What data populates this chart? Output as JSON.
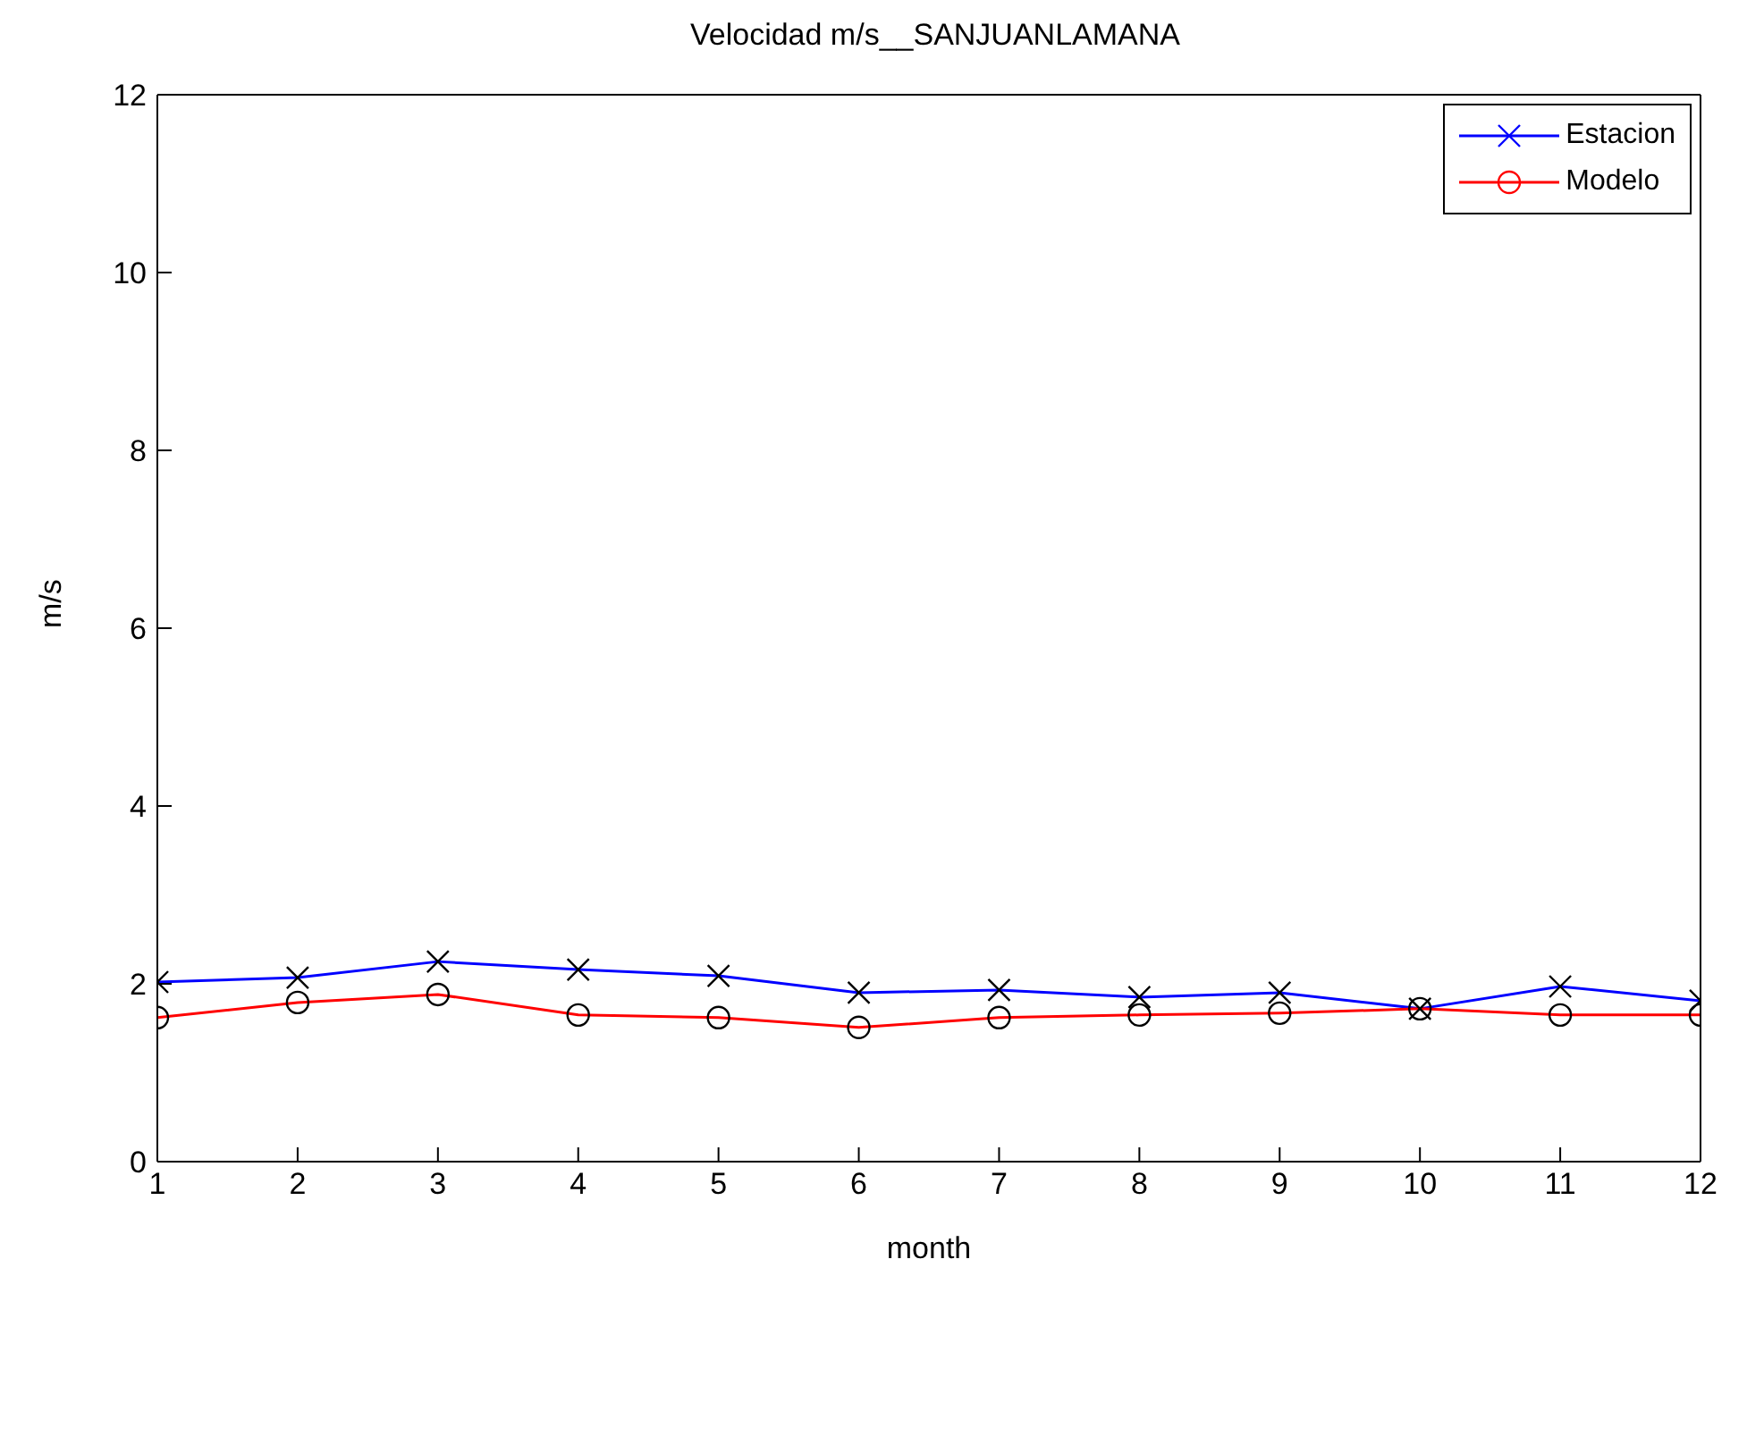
{
  "chart_data": {
    "type": "line",
    "title": "Velocidad m/s__SANJUANLAMANA",
    "xlabel": "month",
    "ylabel": "m/s",
    "x": [
      1,
      2,
      3,
      4,
      5,
      6,
      7,
      8,
      9,
      10,
      11,
      12
    ],
    "series": [
      {
        "name": "Estacion",
        "color": "#0000ff",
        "marker": "cross",
        "values": [
          2.02,
          2.07,
          2.25,
          2.16,
          2.09,
          1.9,
          1.93,
          1.85,
          1.9,
          1.72,
          1.97,
          1.81
        ]
      },
      {
        "name": "Modelo",
        "color": "#ff0000",
        "marker": "circle",
        "values": [
          1.62,
          1.79,
          1.88,
          1.65,
          1.62,
          1.51,
          1.62,
          1.65,
          1.67,
          1.72,
          1.65,
          1.65
        ]
      }
    ],
    "xlim": [
      1,
      12
    ],
    "xticks": [
      1,
      2,
      3,
      4,
      5,
      6,
      7,
      8,
      9,
      10,
      11,
      12
    ],
    "ylim": [
      0,
      12
    ],
    "yticks": [
      0,
      2,
      4,
      6,
      8,
      10,
      12
    ],
    "grid": false,
    "legend": "top right",
    "line_style": "solid"
  }
}
